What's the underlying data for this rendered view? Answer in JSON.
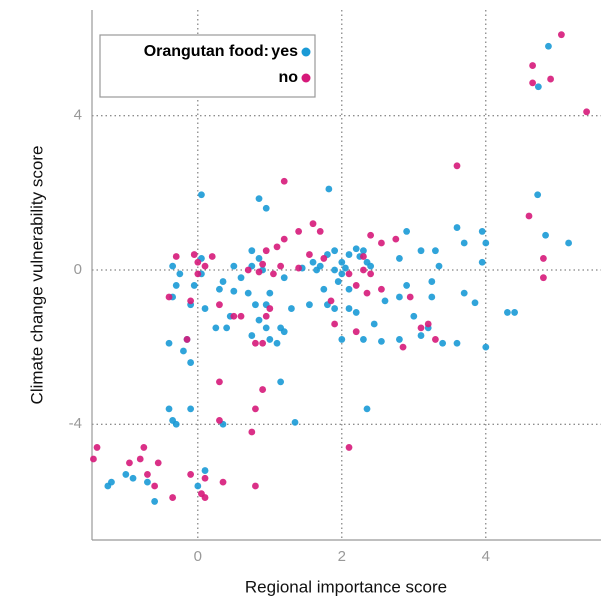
{
  "chart_data": {
    "type": "scatter",
    "x_label": "Regional importance score",
    "y_label": "Climate change vulnerability score",
    "legend_title": "Orangutan food:",
    "legend_position": "upper left",
    "grid": true,
    "xlim": [
      -1.47,
      5.6
    ],
    "ylim": [
      -7.0,
      6.74
    ],
    "xticks": [
      0,
      2,
      4
    ],
    "yticks": [
      4,
      0,
      -4
    ],
    "series": [
      {
        "name": "yes",
        "color": "#1a9ad6",
        "x": [
          4.87,
          4.73,
          4.72,
          4.83,
          5.15,
          3.95,
          4.0,
          3.6,
          3.7,
          3.95,
          3.85,
          3.7,
          4.3,
          4.4,
          4.0,
          3.6,
          3.4,
          3.2,
          3.1,
          3.0,
          3.25,
          3.25,
          3.35,
          3.3,
          3.1,
          2.9,
          2.8,
          2.9,
          2.8,
          2.6,
          2.8,
          2.55,
          2.45,
          2.3,
          2.35,
          2.2,
          2.1,
          1.9,
          1.8,
          1.75,
          1.7,
          1.65,
          1.6,
          1.8,
          1.9,
          2.0,
          2.1,
          2.2,
          2.25,
          2.3,
          2.35,
          2.4,
          1.82,
          1.9,
          2.0,
          2.05,
          1.95,
          2.1,
          2.0,
          1.2,
          1.15,
          1.2,
          1.1,
          1.15,
          1.35,
          1.3,
          1.0,
          0.95,
          0.9,
          0.85,
          0.75,
          0.75,
          0.7,
          0.8,
          0.85,
          0.75,
          0.95,
          0.85,
          0.5,
          0.5,
          0.45,
          0.35,
          0.3,
          0.4,
          0.35,
          0.25,
          0.1,
          0.05,
          0.05,
          0.05,
          -0.05,
          -0.1,
          -0.15,
          -0.2,
          -0.1,
          -0.25,
          -0.3,
          -0.35,
          -0.35,
          -0.4,
          -0.4,
          -0.35,
          -0.3,
          -0.1,
          0.0,
          0.1,
          -0.6,
          -0.7,
          -1.2,
          -1.25,
          -1.0,
          -0.9,
          1.55,
          1.45,
          0.6,
          1.0,
          0.95
        ],
        "y": [
          5.8,
          4.75,
          1.95,
          0.9,
          0.7,
          1.0,
          0.7,
          1.1,
          0.7,
          0.2,
          -0.85,
          -0.6,
          -1.1,
          -1.1,
          -2.0,
          -1.9,
          -1.9,
          -1.5,
          -1.7,
          -1.2,
          -0.7,
          -0.3,
          0.1,
          0.5,
          0.5,
          1.0,
          0.3,
          -0.4,
          -0.7,
          -0.8,
          -1.8,
          -1.85,
          -1.4,
          -1.8,
          -3.6,
          -1.1,
          -1.0,
          -1.0,
          -0.9,
          -0.5,
          0.1,
          0.0,
          0.2,
          0.4,
          0.5,
          0.2,
          0.4,
          0.55,
          0.35,
          0.5,
          0.2,
          0.1,
          2.1,
          0.0,
          -0.1,
          0.05,
          -0.3,
          -0.5,
          -1.8,
          -0.2,
          -1.5,
          -1.6,
          -1.9,
          -2.9,
          -3.95,
          -1.0,
          -0.6,
          -0.9,
          0.0,
          0.3,
          0.5,
          0.1,
          -0.6,
          -0.9,
          -1.3,
          -1.7,
          -1.5,
          1.85,
          0.1,
          -0.55,
          -1.2,
          -0.3,
          -0.5,
          -1.5,
          -4.0,
          -1.5,
          -1.0,
          0.3,
          -0.1,
          1.95,
          -0.4,
          -0.9,
          -1.8,
          -2.1,
          -2.4,
          -0.1,
          -0.4,
          -0.7,
          0.1,
          -1.9,
          -3.6,
          -3.9,
          -4.0,
          -3.6,
          -5.6,
          -5.2,
          -6.0,
          -5.5,
          -5.5,
          -5.6,
          -5.3,
          -5.4,
          -0.9,
          0.05,
          -0.2,
          -1.8,
          1.6
        ]
      },
      {
        "name": "no",
        "color": "#d6197a",
        "x": [
          5.05,
          4.65,
          4.9,
          4.65,
          5.4,
          4.6,
          4.8,
          4.8,
          3.6,
          3.2,
          2.85,
          2.75,
          2.55,
          2.4,
          2.3,
          2.3,
          2.4,
          2.2,
          2.1,
          2.1,
          2.2,
          1.9,
          1.85,
          1.7,
          1.75,
          1.6,
          1.4,
          1.4,
          1.2,
          1.2,
          1.1,
          1.15,
          1.05,
          0.95,
          0.9,
          0.85,
          0.8,
          0.9,
          0.95,
          1.0,
          0.9,
          0.8,
          0.75,
          0.8,
          0.6,
          0.5,
          0.3,
          0.3,
          0.3,
          0.35,
          0.1,
          0.05,
          0.1,
          -0.1,
          0.0,
          0.1,
          0.0,
          0.2,
          -0.05,
          -0.1,
          -0.15,
          -0.3,
          -0.4,
          -0.35,
          -0.6,
          -0.55,
          -0.8,
          -0.75,
          -0.95,
          -1.4,
          -1.45,
          -0.7,
          2.95,
          3.1,
          2.55,
          2.35,
          0.7,
          1.55,
          3.3
        ],
        "y": [
          6.1,
          5.3,
          4.95,
          4.85,
          4.1,
          1.4,
          0.3,
          -0.2,
          2.7,
          -1.4,
          -2.0,
          0.8,
          0.7,
          0.9,
          0.35,
          0.0,
          -0.1,
          -0.4,
          -0.1,
          -4.6,
          -1.6,
          -1.4,
          -0.8,
          1.0,
          0.3,
          1.2,
          1.0,
          0.05,
          2.3,
          0.8,
          0.6,
          0.1,
          -0.1,
          0.5,
          0.15,
          -0.05,
          -1.9,
          -1.9,
          -1.2,
          -1.0,
          -3.1,
          -3.6,
          -4.2,
          -5.6,
          -1.2,
          -1.2,
          -0.9,
          -2.9,
          -3.9,
          -5.5,
          -5.9,
          -5.8,
          -5.4,
          -5.3,
          0.2,
          0.1,
          -0.1,
          0.35,
          0.4,
          -0.8,
          -1.8,
          0.35,
          -0.7,
          -5.9,
          -5.6,
          -5.0,
          -4.9,
          -4.6,
          -5.0,
          -4.6,
          -4.9,
          -5.3,
          -0.7,
          -1.5,
          -0.5,
          -0.6,
          0.0,
          0.4,
          -1.8
        ]
      }
    ]
  }
}
